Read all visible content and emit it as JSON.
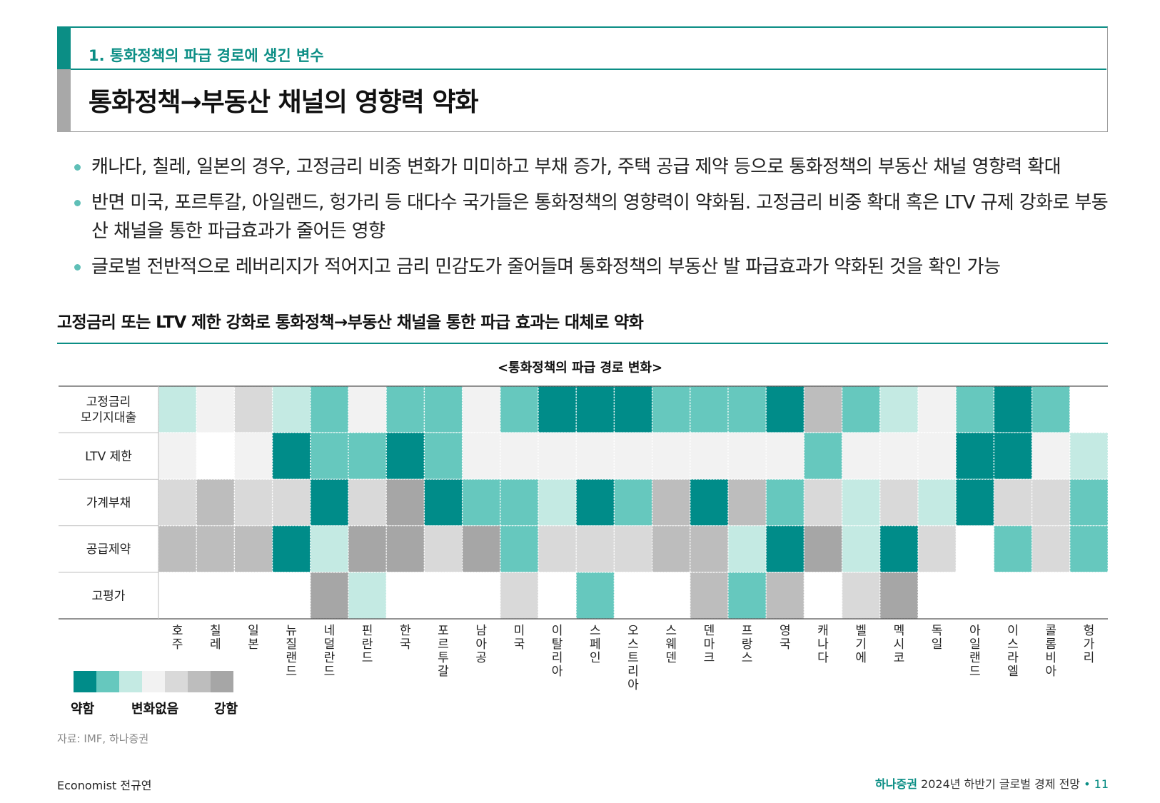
{
  "header": {
    "section_label": "1. 통화정책의 파급 경로에 생긴 변수",
    "title": "통화정책→부동산 채널의 영향력 약화"
  },
  "bullets": [
    "캐나다, 칠레, 일본의 경우, 고정금리 비중 변화가 미미하고 부채 증가, 주택 공급 제약 등으로 통화정책의 부동산 채널 영향력 확대",
    "반면 미국, 포르투갈, 아일랜드, 헝가리 등 대다수 국가들은 통화정책의 영향력이 약화됨. 고정금리 비중 확대 혹은 LTV 규제 강화로 부동산 채널을 통한 파급효과가 줄어든 영향",
    "글로벌 전반적으로 레버리지가 적어지고 금리 민감도가 줄어들며 통화정책의 부동산 발 파급효과가 약화된 것을 확인 가능"
  ],
  "chart_heading": "고정금리 또는 LTV 제한 강화로 통화정책→부동산 채널을 통한 파급 효과는 대체로 약화",
  "chart_data": {
    "type": "heatmap",
    "title": "<통화정책의 파급 경로 변화>",
    "rows": [
      [
        "고정금리",
        "모기지대출"
      ],
      [
        "LTV 제한"
      ],
      [
        "가계부채"
      ],
      [
        "공급제약"
      ],
      [
        "고평가"
      ]
    ],
    "columns": [
      "호주",
      "칠레",
      "일본",
      "뉴질랜드",
      "네덜란드",
      "핀란드",
      "한국",
      "포르투갈",
      "남아공",
      "미국",
      "이탈리아",
      "스페인",
      "오스트리아",
      "스웨덴",
      "덴마크",
      "프랑스",
      "영국",
      "캐나다",
      "벨기에",
      "멕시코",
      "독일",
      "아일랜드",
      "이스라엘",
      "콜롬비아",
      "헝가리"
    ],
    "scale_note": "level 1 = 약함 (weakened), 4 = 변화없음 (no change), 7 = 강함 (strengthened), 0 = blank",
    "values": [
      [
        3,
        4,
        5,
        3,
        2,
        4,
        2,
        2,
        4,
        2,
        1,
        1,
        1,
        2,
        2,
        2,
        1,
        6,
        2,
        3,
        4,
        2,
        1,
        2,
        0
      ],
      [
        4,
        0,
        4,
        1,
        2,
        2,
        1,
        2,
        4,
        4,
        4,
        4,
        4,
        4,
        4,
        4,
        4,
        2,
        4,
        4,
        4,
        1,
        1,
        4,
        3
      ],
      [
        5,
        6,
        5,
        5,
        1,
        5,
        7,
        1,
        2,
        2,
        3,
        1,
        2,
        6,
        1,
        6,
        2,
        5,
        3,
        5,
        3,
        1,
        5,
        5,
        2
      ],
      [
        6,
        6,
        6,
        1,
        3,
        7,
        7,
        5,
        7,
        2,
        5,
        5,
        5,
        6,
        6,
        3,
        1,
        7,
        3,
        1,
        5,
        0,
        2,
        5,
        2
      ],
      [
        0,
        0,
        0,
        0,
        7,
        3,
        0,
        0,
        0,
        5,
        0,
        2,
        0,
        0,
        6,
        2,
        6,
        0,
        5,
        7,
        0,
        0,
        0,
        0,
        0
      ]
    ],
    "legend": {
      "colors": [
        "#008c89",
        "#66c8be",
        "#c4eae3",
        "#f2f2f2",
        "#d9d9d9",
        "#bdbdbd",
        "#a6a6a6"
      ],
      "labels": [
        "약함",
        "변화없음",
        "강함"
      ]
    }
  },
  "source": "자료: IMF, 하나증권",
  "footer": {
    "left": "Economist 전규연",
    "brand": "하나증권",
    "report": "2024년 하반기 글로벌 경제 전망",
    "separator": "•",
    "page": "11"
  }
}
